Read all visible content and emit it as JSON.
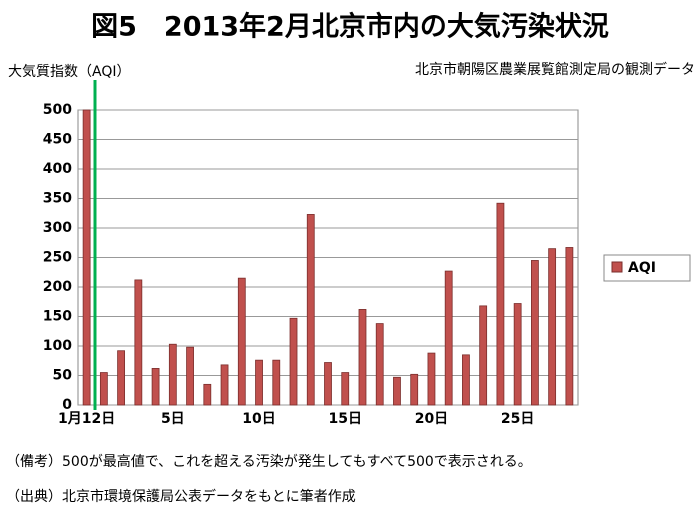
{
  "chart_data": {
    "type": "bar",
    "title": "図5　2013年2月北京市内の大気汚染状況",
    "ylabel": "大気質指数（AQI）",
    "subtitle": "北京市朝陽区農業展覧館測定局の観測データ",
    "categories": [
      "1月12日",
      null,
      null,
      null,
      null,
      "5日",
      null,
      null,
      null,
      null,
      "10日",
      null,
      null,
      null,
      null,
      "15日",
      null,
      null,
      null,
      null,
      "20日",
      null,
      null,
      null,
      null,
      "25日",
      null,
      null,
      null
    ],
    "series": [
      {
        "name": "AQI",
        "color": "#c0504d",
        "values": [
          500,
          55,
          92,
          212,
          62,
          103,
          98,
          35,
          68,
          215,
          76,
          76,
          147,
          323,
          72,
          55,
          162,
          138,
          47,
          52,
          88,
          227,
          85,
          168,
          342,
          172,
          245,
          265,
          267
        ]
      }
    ],
    "ylim": [
      0,
      500
    ],
    "yticks": [
      0,
      50,
      100,
      150,
      200,
      250,
      300,
      350,
      400,
      450,
      500
    ],
    "grid": true,
    "legend": "right",
    "notes": [
      "（備考）500が最高値で、これを超える汚染が発生してもすべて500で表示される。",
      "（出典）北京市環境保護局公表データをもとに筆者作成"
    ]
  }
}
